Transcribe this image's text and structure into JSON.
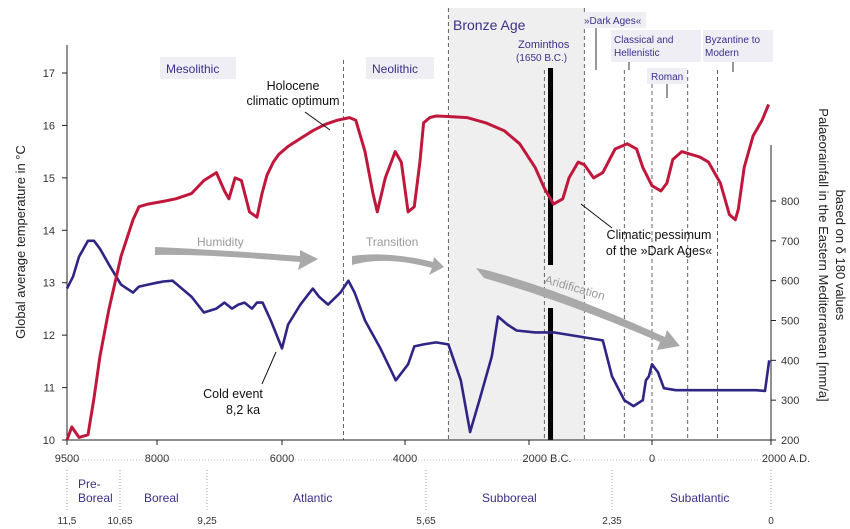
{
  "chart_data": {
    "type": "line",
    "title": "",
    "xlabel": "",
    "ylabel": "Global average temperature in °C",
    "y2label_line1": "Palaeorainfall in the Eastern Mediterranean [mm/a]",
    "y2label_line2": "based on δ 180 values",
    "xlim": [
      -9500,
      2000
    ],
    "ylim": [
      10,
      17
    ],
    "y2lim": [
      200,
      1000
    ],
    "x_ticks": [
      {
        "value": -9500,
        "label": "9500"
      },
      {
        "value": -8000,
        "label": "8000"
      },
      {
        "value": -6000,
        "label": "6000"
      },
      {
        "value": -4000,
        "label": "4000"
      },
      {
        "value": -2000,
        "label": "2000 B.C."
      },
      {
        "value": 0,
        "label": "0"
      },
      {
        "value": 2000,
        "label": "2000 A.D."
      }
    ],
    "y_ticks": [
      "10",
      "11",
      "12",
      "13",
      "14",
      "15",
      "16",
      "17"
    ],
    "y2_ticks": [
      "200",
      "300",
      "400",
      "500",
      "600",
      "700",
      "800"
    ],
    "colors": {
      "temperature": "#c0183c",
      "rainfall": "#2e2585",
      "arrow": "#a9a9a9",
      "band": "#efefef",
      "label_bg": "#eeeef4",
      "text_period": "#3b2f8c"
    },
    "series": [
      {
        "name": "",
        "axis": "left",
        "color": "#c0183c",
        "x": [
          -9500,
          -9420,
          -9300,
          -9150,
          -9050,
          -8950,
          -8800,
          -8600,
          -8400,
          -8300,
          -8150,
          -8050,
          -7900,
          -7700,
          -7450,
          -7250,
          -7050,
          -6920,
          -6850,
          -6750,
          -6650,
          -6520,
          -6400,
          -6320,
          -6240,
          -6140,
          -6050,
          -5900,
          -5700,
          -5500,
          -5300,
          -5100,
          -4900,
          -4800,
          -4650,
          -4520,
          -4450,
          -4320,
          -4160,
          -4060,
          -3950,
          -3850,
          -3760,
          -3700,
          -3600,
          -3500,
          -3300,
          -3000,
          -2700,
          -2400,
          -2150,
          -1900,
          -1750,
          -1600,
          -1450,
          -1350,
          -1200,
          -1100,
          -950,
          -800,
          -600,
          -400,
          -250,
          -150,
          0,
          150,
          250,
          350,
          500,
          650,
          800,
          950,
          1150,
          1300,
          1400,
          1450,
          1550,
          1700,
          1850,
          1960
        ],
        "y": [
          10.0,
          10.25,
          10.05,
          10.1,
          10.8,
          11.6,
          12.5,
          13.5,
          14.2,
          14.45,
          14.5,
          14.52,
          14.55,
          14.6,
          14.7,
          14.95,
          15.1,
          14.75,
          14.6,
          15.0,
          14.95,
          14.35,
          14.25,
          14.7,
          15.05,
          15.3,
          15.45,
          15.6,
          15.75,
          15.9,
          16.02,
          16.1,
          16.15,
          16.1,
          15.5,
          14.7,
          14.35,
          15.0,
          15.5,
          15.3,
          14.35,
          14.45,
          15.3,
          16.05,
          16.15,
          16.18,
          16.17,
          16.15,
          16.05,
          15.9,
          15.65,
          15.2,
          14.8,
          14.5,
          14.6,
          15.0,
          15.3,
          15.25,
          15.0,
          15.1,
          15.55,
          15.65,
          15.55,
          15.2,
          14.85,
          14.75,
          14.9,
          15.35,
          15.5,
          15.45,
          15.4,
          15.3,
          14.9,
          14.3,
          14.2,
          14.4,
          15.2,
          15.8,
          16.1,
          16.4
        ]
      },
      {
        "name": "",
        "axis": "right",
        "color": "#2e2585",
        "x": [
          -9500,
          -9400,
          -9300,
          -9150,
          -9050,
          -8950,
          -8800,
          -8600,
          -8400,
          -8300,
          -8150,
          -8000,
          -7900,
          -7750,
          -7450,
          -7250,
          -7050,
          -6920,
          -6800,
          -6700,
          -6600,
          -6480,
          -6400,
          -6310,
          -6180,
          -6000,
          -5900,
          -5700,
          -5550,
          -5500,
          -5400,
          -5250,
          -5050,
          -4920,
          -4820,
          -4650,
          -4400,
          -4150,
          -3950,
          -3850,
          -3700,
          -3500,
          -3300,
          -3100,
          -2950,
          -2800,
          -2600,
          -2500,
          -2350,
          -2200,
          -1900,
          -1600,
          -1200,
          -1000,
          -800,
          -650,
          -450,
          -300,
          -150,
          -100,
          -50,
          0,
          100,
          200,
          400,
          600,
          800,
          1000,
          1200,
          1500,
          1750,
          1900,
          1970
        ],
        "y": [
          580,
          610,
          660,
          700,
          700,
          680,
          640,
          590,
          570,
          585,
          590,
          595,
          598,
          600,
          560,
          520,
          530,
          545,
          530,
          540,
          545,
          530,
          545,
          545,
          500,
          430,
          490,
          540,
          570,
          580,
          560,
          540,
          570,
          600,
          570,
          500,
          430,
          350,
          390,
          435,
          440,
          445,
          440,
          350,
          220,
          300,
          410,
          510,
          490,
          475,
          470,
          470,
          460,
          455,
          450,
          360,
          300,
          285,
          300,
          350,
          360,
          390,
          370,
          330,
          325,
          325,
          325,
          325,
          325,
          325,
          325,
          323,
          400
        ]
      }
    ],
    "bands": [
      {
        "label": "Bronze Age",
        "x0": -3300,
        "x1": -1100
      }
    ],
    "vlines_dashed": [
      -5000,
      -3300,
      -1100,
      0,
      600,
      1100,
      -450,
      -1750
    ],
    "zominthos_line": {
      "x": -1650,
      "label_line1": "Zominthos",
      "label_line2": "(1650 B.C.)"
    },
    "periods": [
      {
        "label": "Mesolithic",
        "x": -7600
      },
      {
        "label": "Neolithic",
        "x": -4200
      },
      {
        "label": "Bronze Age",
        "x": -2700
      },
      {
        "label": "»Dark Ages«",
        "x": -1050
      },
      {
        "label_line1": "Classical and",
        "label_line2": "Hellenistic",
        "x": -350
      },
      {
        "label": "Roman",
        "x": 150
      },
      {
        "label_line1": "Byzantine to",
        "label_line2": "Modern",
        "x": 1200
      }
    ],
    "annotations": [
      {
        "line1": "Holocene",
        "line2": "climatic optimum"
      },
      {
        "line1": "Climatic pessimum",
        "line2": "of the »Dark Ages«"
      },
      {
        "line1": "Cold event",
        "line2": "8,2 ka"
      }
    ],
    "arrows": [
      {
        "label": "Humidity"
      },
      {
        "label": "Transition"
      },
      {
        "label": "Aridification"
      }
    ],
    "zones": [
      {
        "line1": "Pre-",
        "line2": "Boreal"
      },
      {
        "line1": "Boreal",
        "line2": ""
      },
      {
        "line1": "Atlantic",
        "line2": ""
      },
      {
        "line1": "Subboreal",
        "line2": ""
      },
      {
        "line1": "Subatlantic",
        "line2": ""
      }
    ],
    "zone_ticks": [
      "11,5",
      "10,65",
      "9,25",
      "5,65",
      "2,35",
      "0"
    ]
  }
}
